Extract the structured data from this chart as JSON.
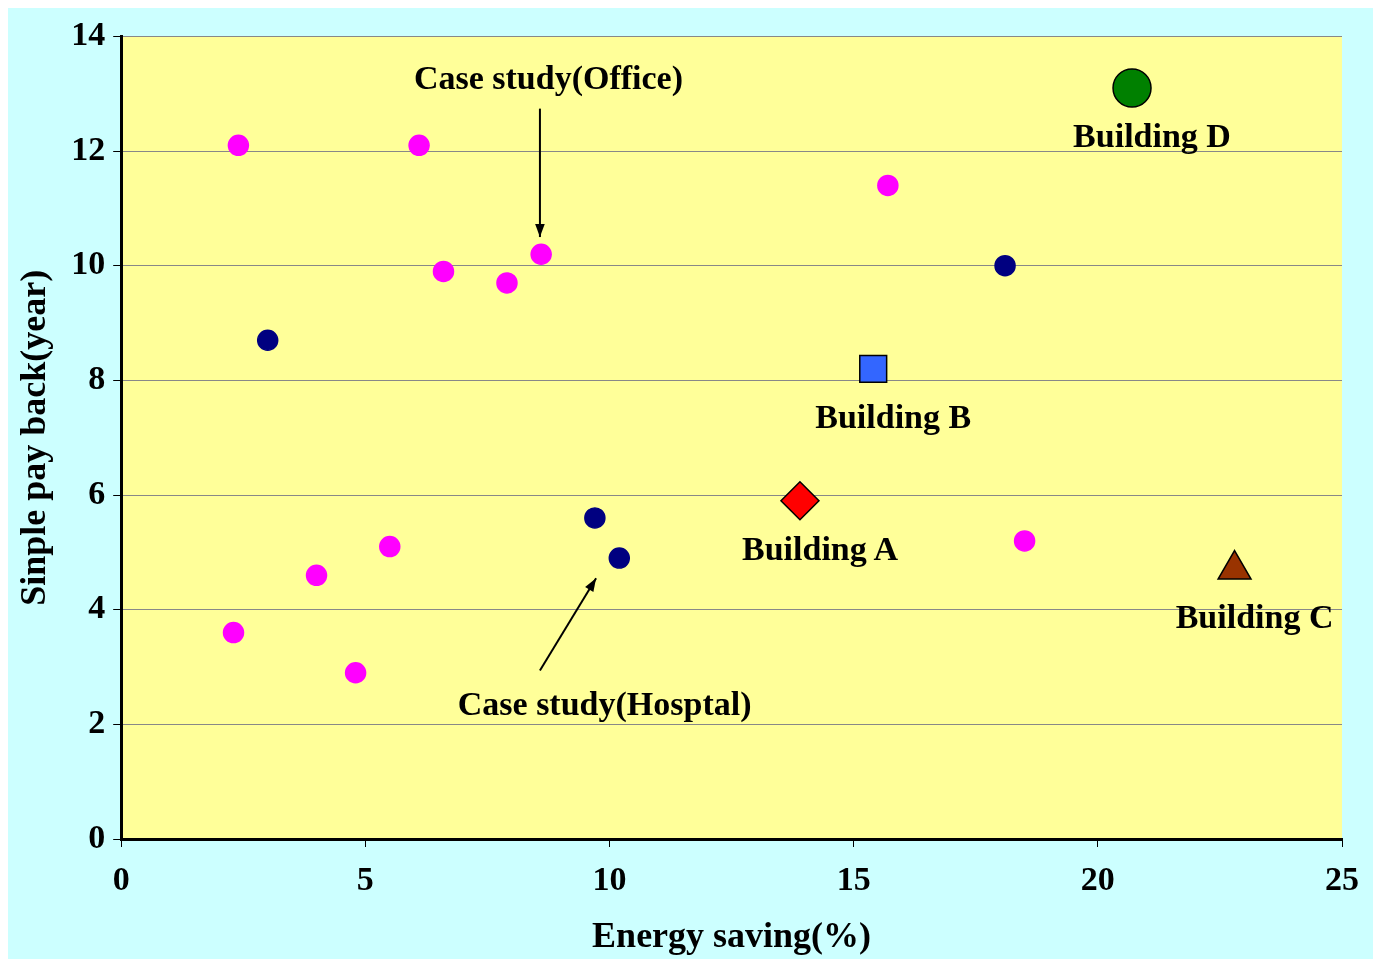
{
  "chart_data": {
    "type": "scatter",
    "xlabel": "Energy saving(%)",
    "ylabel": "Sinple pay back(year)",
    "xlim": [
      0,
      25
    ],
    "xticks": [
      0,
      5,
      10,
      15,
      20,
      25
    ],
    "ylim": [
      0,
      14
    ],
    "yticks": [
      0,
      2,
      4,
      6,
      8,
      10,
      12,
      14
    ],
    "grid": "y",
    "legend": false,
    "series": [
      {
        "color": "#ff00ff",
        "marker": "circle",
        "x": [
          2.4,
          6.1,
          15.7,
          8.6,
          6.6,
          7.9,
          2.3,
          4.0,
          5.5,
          4.8,
          18.5
        ],
        "values": [
          12.1,
          12.1,
          11.4,
          10.2,
          9.9,
          9.7,
          3.6,
          4.6,
          5.1,
          2.9,
          5.2
        ]
      },
      {
        "color": "#000080",
        "marker": "circle",
        "x": [
          3.0,
          18.1,
          9.7,
          10.2
        ],
        "values": [
          8.7,
          10.0,
          5.6,
          4.9
        ]
      },
      {
        "name": "Building A",
        "color": "#ff0000",
        "marker": "diamond",
        "x": [
          13.9
        ],
        "values": [
          5.9
        ]
      },
      {
        "name": "Building B",
        "color": "#3366ff",
        "marker": "square",
        "x": [
          15.4
        ],
        "values": [
          8.2
        ]
      },
      {
        "name": "Building C",
        "color": "#993300",
        "marker": "triangle",
        "x": [
          22.8
        ],
        "values": [
          4.7
        ]
      },
      {
        "name": "Building D",
        "color": "#008000",
        "marker": "circle",
        "x": [
          20.7
        ],
        "values": [
          13.1
        ]
      }
    ],
    "annotations": [
      "Case study(Office)",
      "Case study(Hosptal)"
    ]
  }
}
